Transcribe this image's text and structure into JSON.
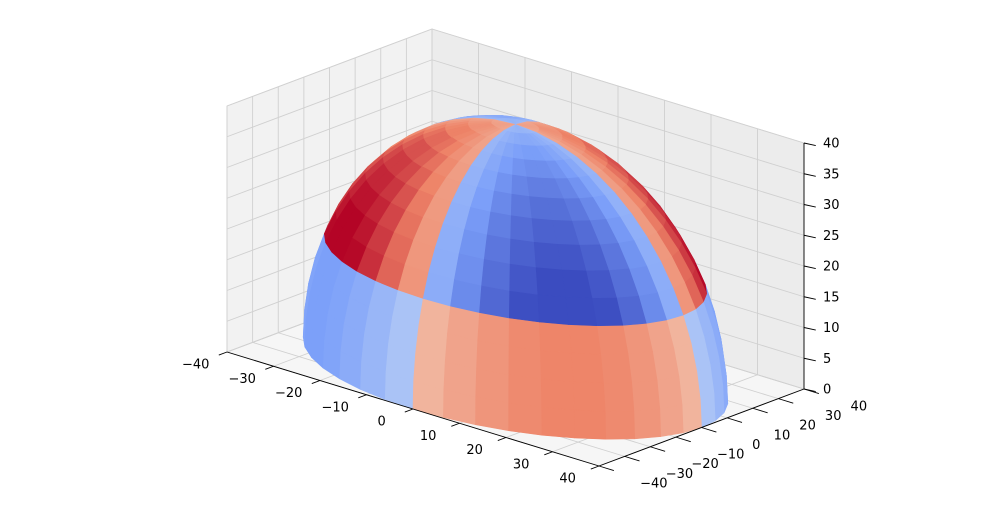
{
  "chart_data": {
    "type": "surface3d",
    "surface": "upper hemisphere",
    "radius": 40,
    "colormap": "coolwarm",
    "colormap_stops": [
      "#3b4cc0",
      "#7b9ff9",
      "#c0d4f5",
      "#f2cbb7",
      "#ee8468",
      "#b40426"
    ],
    "pane_color": "#f2f2f2",
    "grid": true,
    "xlim": [
      -40,
      40
    ],
    "ylim": [
      -40,
      40
    ],
    "zlim": [
      0,
      40
    ],
    "x_ticks": [
      "−40",
      "−30",
      "−20",
      "−10",
      "0",
      "10",
      "20",
      "30",
      "40"
    ],
    "y_ticks": [
      "−40",
      "−30",
      "−20",
      "−10",
      "0",
      "10",
      "20",
      "30",
      "40"
    ],
    "z_ticks": [
      "0",
      "5",
      "10",
      "15",
      "20",
      "25",
      "30",
      "35",
      "40"
    ]
  }
}
